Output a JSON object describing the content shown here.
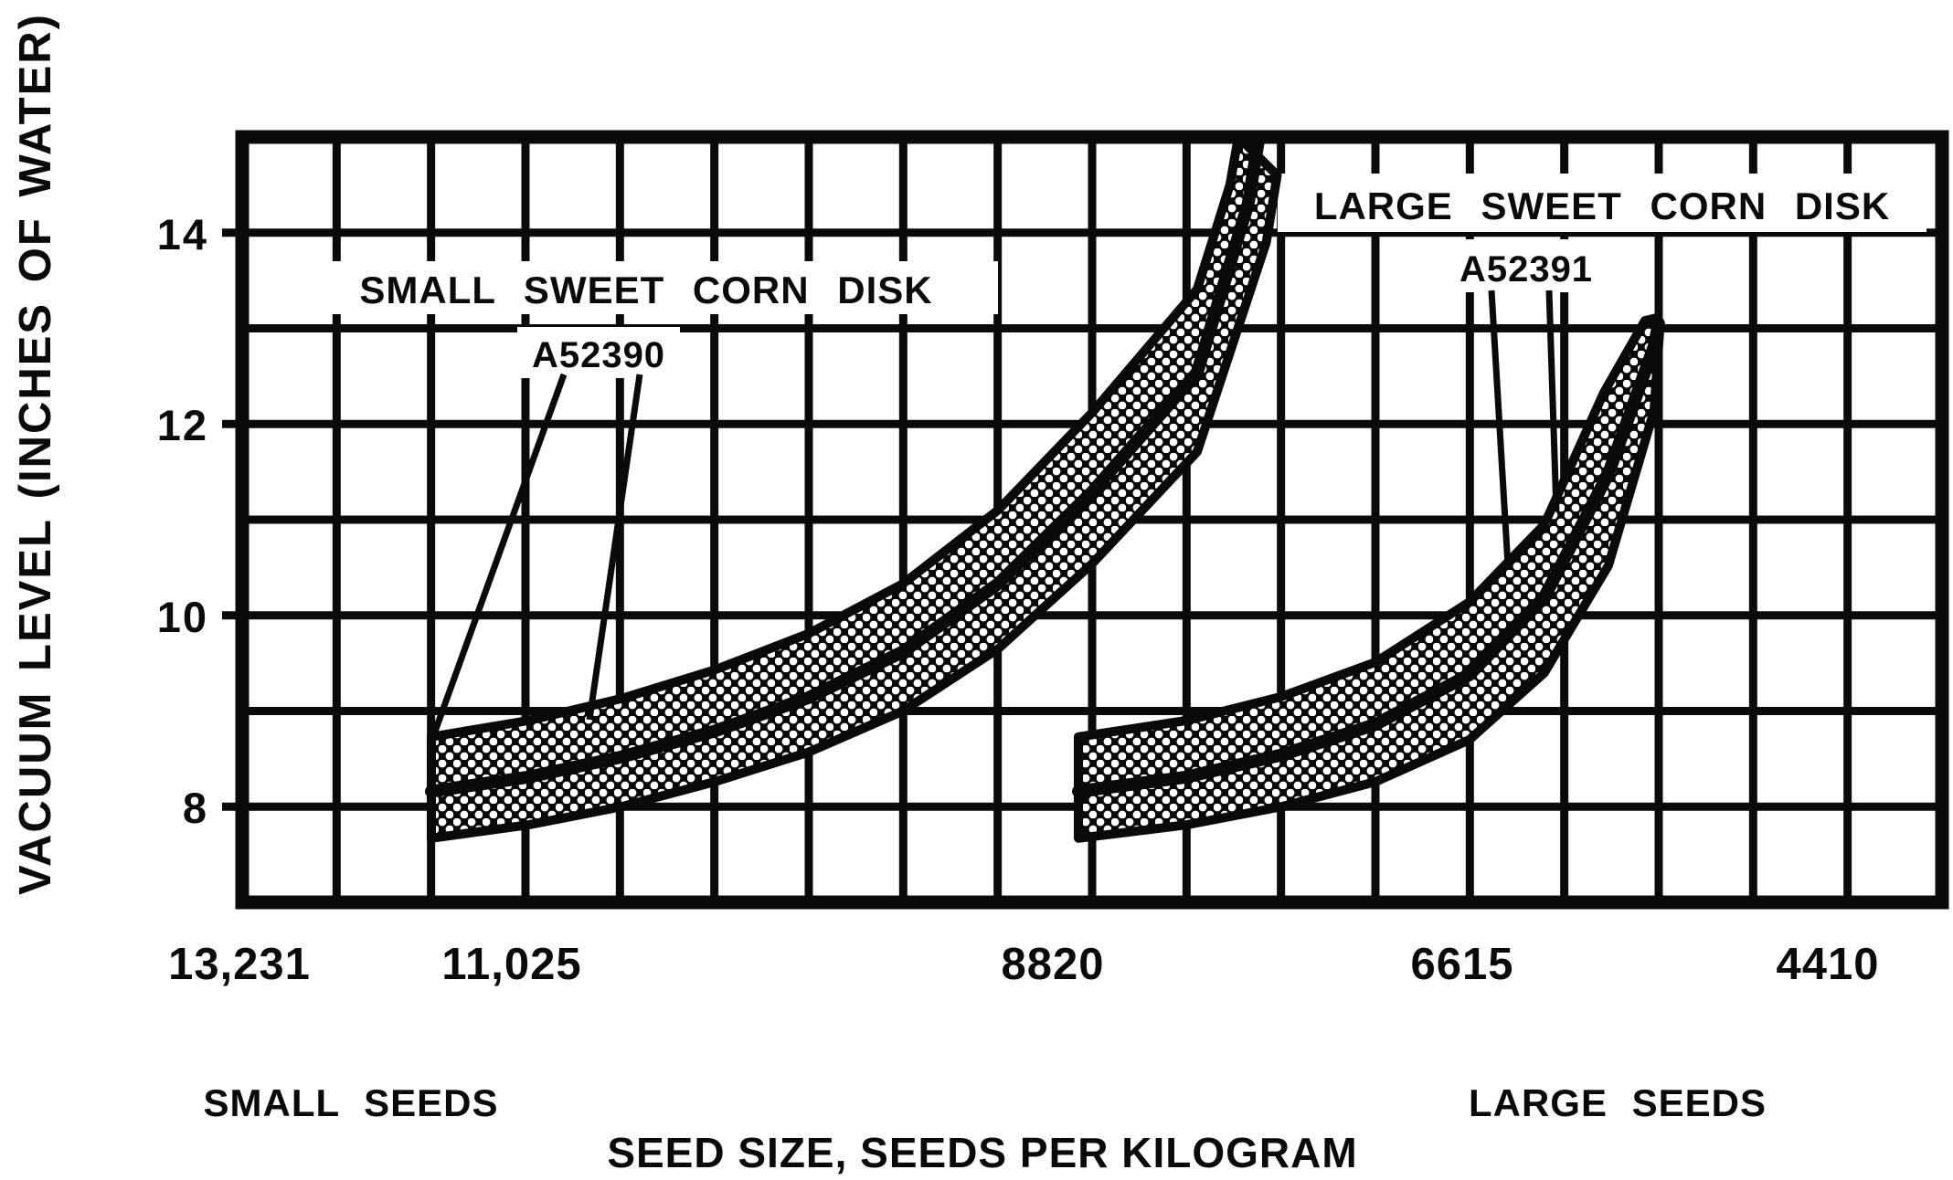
{
  "chart_data": {
    "type": "area",
    "description": "Vacuum level operating bands for two seed disks, shown as stippled bands with a dark centerline; x axis is seed size in seeds per kilogram (decreasing left to right), y axis is vacuum in inches of water.",
    "xlabel": "SEED SIZE, SEEDS PER KILOGRAM",
    "ylabel": "VACUUM LEVEL (INCHES OF WATER)",
    "x_tick_labels": [
      "13,231",
      "11,025",
      "8820",
      "6615",
      "4410"
    ],
    "x_tick_values": [
      13231,
      11025,
      8820,
      6615,
      4410
    ],
    "y_tick_labels": [
      "14",
      "12",
      "10",
      "8"
    ],
    "y_tick_values": [
      14,
      12,
      10,
      8
    ],
    "ylim": [
      7,
      15
    ],
    "xlim": [
      13231,
      3880
    ],
    "grid": "on, 1 unit vertical spacing, ~515 seeds/kg horizontal spacing",
    "legend_position": "labels inside plot with pointer lines",
    "x_axis_annotations": {
      "left": "SMALL SEEDS",
      "right": "LARGE SEEDS"
    },
    "series": [
      {
        "name": "SMALL SWEET CORN DISK",
        "part_number": "A52390",
        "band_top": [
          [
            12191,
            8.73
          ],
          [
            11658,
            8.9
          ],
          [
            11146,
            9.13
          ],
          [
            10633,
            9.43
          ],
          [
            10116,
            9.81
          ],
          [
            9598,
            10.33
          ],
          [
            9075,
            11.1
          ],
          [
            8558,
            12.12
          ],
          [
            7980,
            13.41
          ],
          [
            7800,
            14.5
          ],
          [
            7754,
            15.0
          ]
        ],
        "band_mid": [
          [
            12191,
            8.16
          ],
          [
            11658,
            8.31
          ],
          [
            11146,
            8.52
          ],
          [
            10633,
            8.79
          ],
          [
            10116,
            9.14
          ],
          [
            9598,
            9.62
          ],
          [
            9075,
            10.33
          ],
          [
            8558,
            11.29
          ],
          [
            7980,
            12.54
          ],
          [
            7700,
            14.3
          ],
          [
            7640,
            15.0
          ]
        ],
        "band_bottom": [
          [
            12191,
            7.67
          ],
          [
            11658,
            7.81
          ],
          [
            11146,
            8.0
          ],
          [
            10633,
            8.26
          ],
          [
            10116,
            8.57
          ],
          [
            9598,
            9.0
          ],
          [
            9075,
            9.65
          ],
          [
            8558,
            10.54
          ],
          [
            7980,
            11.71
          ],
          [
            7600,
            13.9
          ],
          [
            7540,
            14.6
          ]
        ]
      },
      {
        "name": "LARGE SWEET CORN DISK",
        "part_number": "A52391",
        "band_top": [
          [
            8633,
            8.73
          ],
          [
            8040,
            8.9
          ],
          [
            7518,
            9.15
          ],
          [
            7000,
            9.51
          ],
          [
            6483,
            10.14
          ],
          [
            6071,
            10.95
          ],
          [
            5744,
            12.33
          ],
          [
            5518,
            13.08
          ],
          [
            5453,
            13.11
          ]
        ],
        "band_mid": [
          [
            8633,
            8.16
          ],
          [
            8040,
            8.31
          ],
          [
            7518,
            8.54
          ],
          [
            7000,
            8.86
          ],
          [
            6483,
            9.38
          ],
          [
            6071,
            10.19
          ],
          [
            5719,
            11.48
          ],
          [
            5468,
            12.81
          ],
          [
            5443,
            13.05
          ]
        ],
        "band_bottom": [
          [
            8633,
            7.67
          ],
          [
            8040,
            7.81
          ],
          [
            7518,
            8.0
          ],
          [
            7000,
            8.26
          ],
          [
            6483,
            8.7
          ],
          [
            6071,
            9.4
          ],
          [
            5719,
            10.52
          ],
          [
            5468,
            12.14
          ],
          [
            5438,
            12.95
          ]
        ]
      }
    ]
  },
  "labels": {
    "y_axis_title": "VACUUM LEVEL (INCHES OF WATER)",
    "x_axis_title": "SEED SIZE, SEEDS PER KILOGRAM",
    "small_band_name": "SMALL SWEET CORN DISK",
    "small_band_part": "A52390",
    "large_band_name": "LARGE SWEET CORN DISK",
    "large_band_part": "A52391",
    "small_seeds": "SMALL SEEDS",
    "large_seeds": "LARGE SEEDS",
    "ytick_14": "14",
    "ytick_12": "12",
    "ytick_10": "10",
    "ytick_8": "8",
    "xtick_13231": "13,231",
    "xtick_11025": "11,025",
    "xtick_8820": "8820",
    "xtick_6615": "6615",
    "xtick_4410": "4410"
  },
  "colors": {
    "ink": "#0a0a0a",
    "background": "#ffffff"
  }
}
